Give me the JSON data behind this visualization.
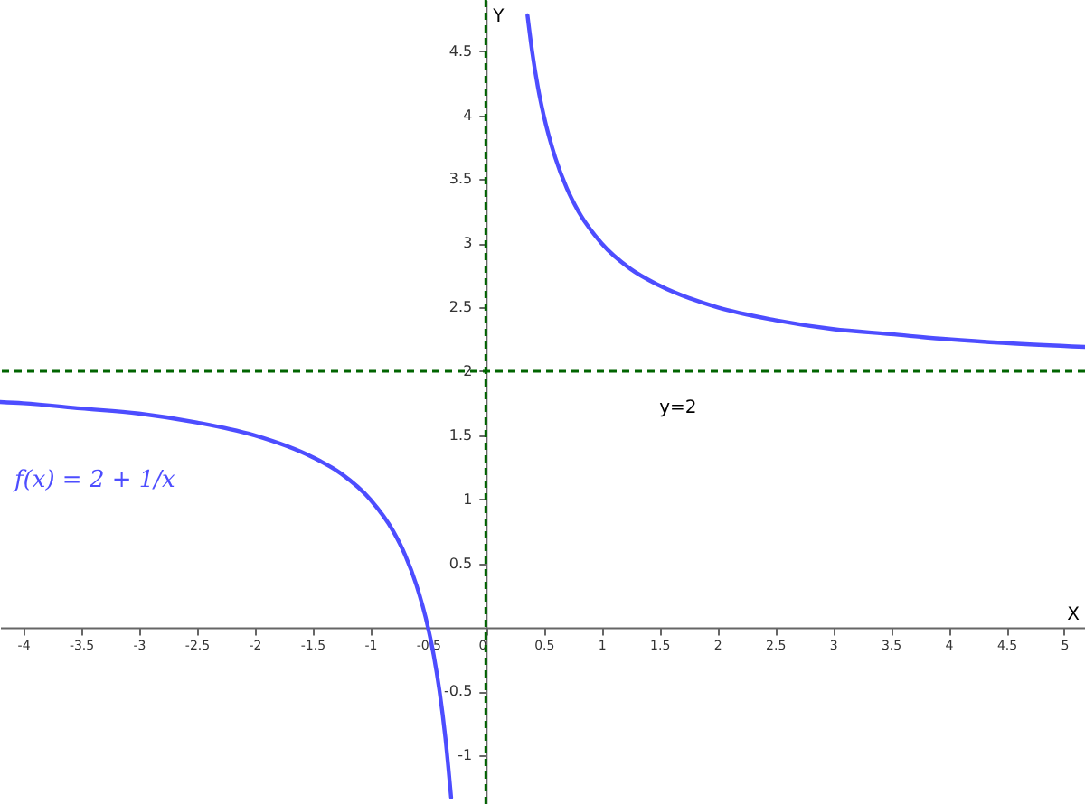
{
  "chart_data": {
    "type": "line",
    "xlabel": "X",
    "ylabel": "Y",
    "x": [
      -4.2,
      -4,
      -3.5,
      -3,
      -2.5,
      -2,
      -1.5,
      -1.25,
      -1,
      -0.8,
      -0.7,
      -0.6,
      -0.5,
      -0.45,
      -0.4,
      -0.35,
      -0.3,
      0,
      0.36,
      0.4,
      0.45,
      0.5,
      0.6,
      0.7,
      0.8,
      1,
      1.25,
      1.5,
      2,
      2.5,
      3,
      3.5,
      4,
      4.5,
      5.18
    ],
    "series": [
      {
        "name": "f(x) = 2 + 1/x",
        "color": "#4d4dff",
        "values": [
          1.76,
          1.75,
          1.71,
          1.67,
          1.6,
          1.5,
          1.33,
          1.2,
          1,
          0.75,
          0.57,
          0.33,
          0,
          -0.22,
          -0.5,
          -0.86,
          -1.33,
          null,
          4.78,
          4.5,
          4.22,
          4,
          3.67,
          3.43,
          3.25,
          3,
          2.8,
          2.67,
          2.5,
          2.4,
          2.33,
          2.29,
          2.25,
          2.22,
          2.19
        ]
      }
    ],
    "xlim": [
      -4.2,
      5.18
    ],
    "ylim": [
      -1.38,
      4.9
    ],
    "xticks": [
      -4,
      -3.5,
      -3,
      -2.5,
      -2,
      -1.5,
      -1,
      -0.5,
      0,
      0.5,
      1,
      1.5,
      2,
      2.5,
      3,
      3.5,
      4,
      4.5,
      5
    ],
    "yticks": [
      -1,
      -0.5,
      0.5,
      1,
      1.5,
      2,
      2.5,
      3,
      3.5,
      4,
      4.5
    ],
    "ref_lines": [
      {
        "axis": "x",
        "value": 0,
        "color": "#006400",
        "line_style": "dashed"
      },
      {
        "axis": "y",
        "value": 2,
        "label": "y=2",
        "color": "#006400",
        "line_style": "dashed"
      }
    ],
    "grid": false,
    "marker": "none",
    "line_style": "solid"
  }
}
